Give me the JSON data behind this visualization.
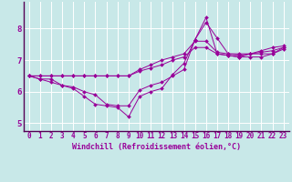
{
  "title": "",
  "xlabel": "Windchill (Refroidissement éolien,°C)",
  "background_color": "#c8e8e8",
  "line_color": "#990099",
  "xlim": [
    -0.5,
    23.5
  ],
  "ylim": [
    4.75,
    8.85
  ],
  "xticks": [
    0,
    1,
    2,
    3,
    4,
    5,
    6,
    7,
    8,
    9,
    10,
    11,
    12,
    13,
    14,
    15,
    16,
    17,
    18,
    19,
    20,
    21,
    22,
    23
  ],
  "yticks": [
    5,
    6,
    7,
    8
  ],
  "series": [
    [
      6.5,
      6.4,
      6.3,
      6.2,
      6.1,
      5.85,
      5.6,
      5.55,
      5.5,
      5.2,
      5.85,
      6.0,
      6.1,
      6.55,
      6.9,
      7.65,
      8.35,
      7.2,
      7.15,
      7.1,
      7.2,
      7.3,
      7.4,
      7.45
    ],
    [
      6.5,
      6.4,
      6.4,
      6.2,
      6.15,
      6.0,
      5.9,
      5.6,
      5.55,
      5.55,
      6.05,
      6.2,
      6.3,
      6.5,
      6.7,
      7.65,
      8.2,
      7.7,
      7.2,
      7.15,
      7.2,
      7.25,
      7.3,
      7.4
    ],
    [
      6.5,
      6.5,
      6.5,
      6.5,
      6.5,
      6.5,
      6.5,
      6.5,
      6.5,
      6.5,
      6.7,
      6.85,
      7.0,
      7.1,
      7.2,
      7.6,
      7.6,
      7.25,
      7.2,
      7.2,
      7.2,
      7.2,
      7.2,
      7.4
    ],
    [
      6.5,
      6.5,
      6.5,
      6.5,
      6.5,
      6.5,
      6.5,
      6.5,
      6.5,
      6.5,
      6.65,
      6.75,
      6.85,
      7.0,
      7.1,
      7.4,
      7.4,
      7.2,
      7.15,
      7.1,
      7.1,
      7.1,
      7.2,
      7.35
    ]
  ],
  "xlabel_fontsize": 6,
  "tick_fontsize": 5.5,
  "grid_color": "#ffffff",
  "spine_color": "#550055"
}
